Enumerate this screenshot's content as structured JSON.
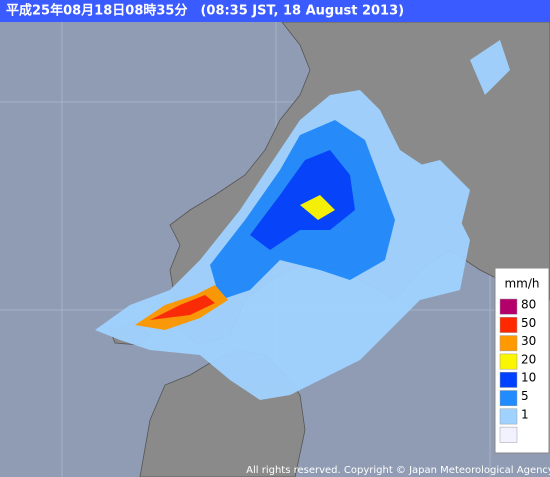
{
  "header": {
    "title": "平成25年08月18日08時35分　(08:35 JST, 18 August 2013)"
  },
  "legend": {
    "unit": "mm/h",
    "levels": [
      80,
      50,
      30,
      20,
      10,
      5,
      1
    ],
    "colors": [
      "#b4006a",
      "#ff2800",
      "#ff9900",
      "#faf500",
      "#0041ff",
      "#218cff",
      "#a0d2ff",
      "#f2f2ff"
    ]
  },
  "footer": {
    "copyright": "All rights reserved. Copyright © Japan Meteorological Agency"
  }
}
